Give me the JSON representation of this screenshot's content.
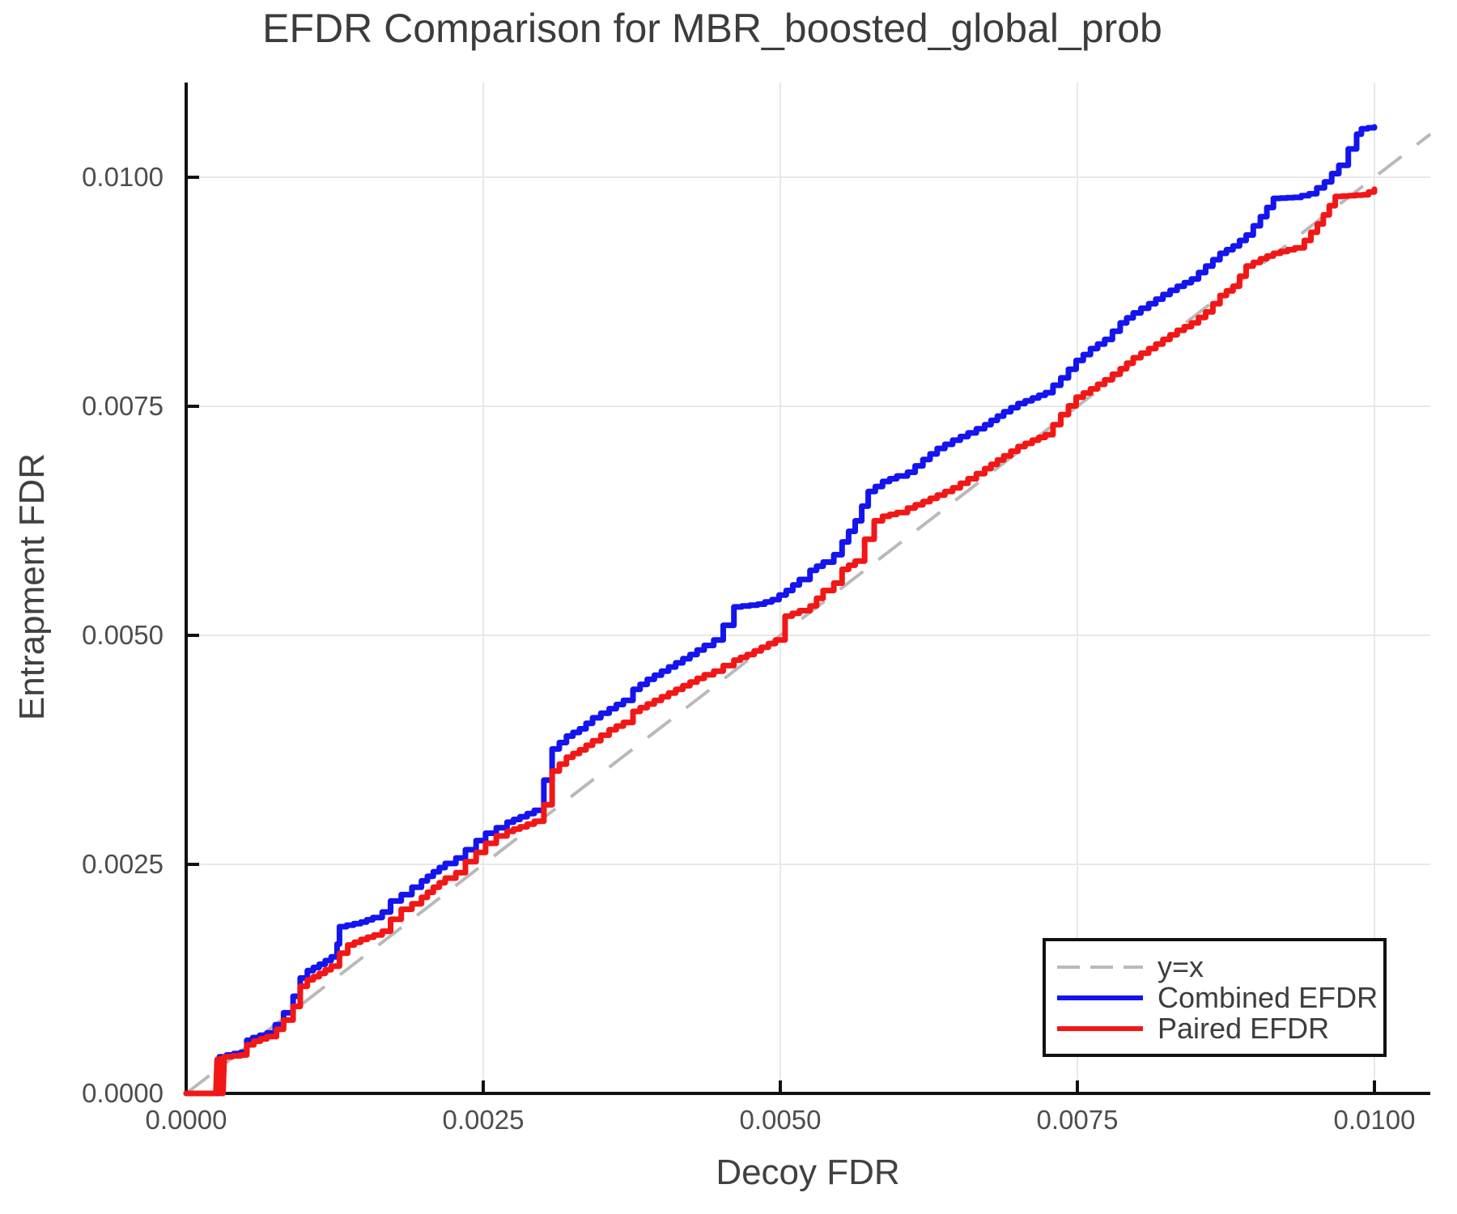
{
  "chart_data": {
    "type": "line",
    "title": "EFDR Comparison for MBR_boosted_global_prob",
    "xlabel": "Decoy FDR",
    "ylabel": "Entrapment FDR",
    "xlim": [
      0,
      0.01047
    ],
    "ylim": [
      0,
      0.011034
    ],
    "grid": true,
    "colors": {
      "grid": "#e8e8e8",
      "axis": "#111111",
      "tick_labels": "#4d4d4d",
      "title": "#3c3c3c",
      "identity": "#b9b9b9",
      "combined": "#1414ef",
      "paired": "#f21717"
    },
    "x_ticks": {
      "values": [
        0,
        0.0025,
        0.005,
        0.0075,
        0.01
      ],
      "labels": [
        "0.0000",
        "0.0025",
        "0.0050",
        "0.0075",
        "0.0100"
      ]
    },
    "y_ticks": {
      "values": [
        0,
        0.0025,
        0.005,
        0.0075,
        0.01
      ],
      "labels": [
        "0.0000",
        "0.0025",
        "0.0050",
        "0.0075",
        "0.0100"
      ]
    },
    "legend": {
      "position": "bottom-right",
      "entries": [
        {
          "label": "y=x",
          "series": "identity"
        },
        {
          "label": "Combined EFDR",
          "series": "combined"
        },
        {
          "label": "Paired EFDR",
          "series": "paired"
        }
      ]
    },
    "series": [
      {
        "id": "identity",
        "name": "y=x",
        "style": "dashed",
        "color": "#b9b9b9",
        "width": 4,
        "points": [
          [
            0,
            0
          ],
          [
            0.01047,
            0.01047
          ]
        ]
      },
      {
        "id": "combined",
        "name": "Combined EFDR",
        "style": "step",
        "color": "#1414ef",
        "width": 7,
        "points": [
          [
            0,
            0
          ],
          [
            0.00027,
            0
          ],
          [
            0.00028,
            0.0004
          ],
          [
            0.00034,
            0.00042
          ],
          [
            0.00046,
            0.00045
          ],
          [
            0.00051,
            0.00058
          ],
          [
            0.00056,
            0.00061
          ],
          [
            0.00068,
            0.00066
          ],
          [
            0.00075,
            0.00075
          ],
          [
            0.00082,
            0.00088
          ],
          [
            0.0009,
            0.00106
          ],
          [
            0.00096,
            0.00126
          ],
          [
            0.00102,
            0.00134
          ],
          [
            0.00112,
            0.00141
          ],
          [
            0.00122,
            0.00149
          ],
          [
            0.00127,
            0.00163
          ],
          [
            0.00129,
            0.00182
          ],
          [
            0.00147,
            0.00187
          ],
          [
            0.00157,
            0.00192
          ],
          [
            0.00165,
            0.00198
          ],
          [
            0.00172,
            0.0021
          ],
          [
            0.00181,
            0.00217
          ],
          [
            0.0019,
            0.00225
          ],
          [
            0.00198,
            0.00232
          ],
          [
            0.00208,
            0.00242
          ],
          [
            0.00218,
            0.00251
          ],
          [
            0.00227,
            0.00257
          ],
          [
            0.00235,
            0.00266
          ],
          [
            0.00244,
            0.00276
          ],
          [
            0.00252,
            0.00284
          ],
          [
            0.00261,
            0.0029
          ],
          [
            0.0027,
            0.00296
          ],
          [
            0.00281,
            0.00302
          ],
          [
            0.00293,
            0.00309
          ],
          [
            0.00301,
            0.00342
          ],
          [
            0.00308,
            0.00376
          ],
          [
            0.0032,
            0.0039
          ],
          [
            0.00331,
            0.00398
          ],
          [
            0.00342,
            0.0041
          ],
          [
            0.00356,
            0.0042
          ],
          [
            0.00368,
            0.00429
          ],
          [
            0.00376,
            0.00441
          ],
          [
            0.00388,
            0.00452
          ],
          [
            0.004,
            0.00461
          ],
          [
            0.00412,
            0.0047
          ],
          [
            0.00424,
            0.00479
          ],
          [
            0.00436,
            0.00489
          ],
          [
            0.00444,
            0.00495
          ],
          [
            0.00452,
            0.00511
          ],
          [
            0.00461,
            0.00531
          ],
          [
            0.00481,
            0.00534
          ],
          [
            0.00493,
            0.00539
          ],
          [
            0.00505,
            0.00549
          ],
          [
            0.00516,
            0.00561
          ],
          [
            0.00525,
            0.00571
          ],
          [
            0.00536,
            0.0058
          ],
          [
            0.00545,
            0.00588
          ],
          [
            0.00552,
            0.00602
          ],
          [
            0.00563,
            0.00625
          ],
          [
            0.00574,
            0.00657
          ],
          [
            0.00586,
            0.00668
          ],
          [
            0.00598,
            0.00674
          ],
          [
            0.00607,
            0.00678
          ],
          [
            0.0062,
            0.00692
          ],
          [
            0.00632,
            0.00704
          ],
          [
            0.00645,
            0.00713
          ],
          [
            0.00658,
            0.00721
          ],
          [
            0.00672,
            0.0073
          ],
          [
            0.00688,
            0.00744
          ],
          [
            0.007,
            0.00753
          ],
          [
            0.00712,
            0.00759
          ],
          [
            0.00723,
            0.00765
          ],
          [
            0.00736,
            0.00781
          ],
          [
            0.00749,
            0.008
          ],
          [
            0.00761,
            0.00813
          ],
          [
            0.00773,
            0.00823
          ],
          [
            0.00786,
            0.00841
          ],
          [
            0.00797,
            0.00852
          ],
          [
            0.0081,
            0.00862
          ],
          [
            0.00822,
            0.00872
          ],
          [
            0.00834,
            0.00881
          ],
          [
            0.00846,
            0.00889
          ],
          [
            0.00858,
            0.00903
          ],
          [
            0.0087,
            0.00917
          ],
          [
            0.00881,
            0.00925
          ],
          [
            0.00892,
            0.00937
          ],
          [
            0.00904,
            0.00957
          ],
          [
            0.00915,
            0.00977
          ],
          [
            0.00932,
            0.00978
          ],
          [
            0.00945,
            0.00982
          ],
          [
            0.00958,
            0.00995
          ],
          [
            0.0097,
            0.01013
          ],
          [
            0.00978,
            0.01031
          ],
          [
            0.00985,
            0.01047
          ],
          [
            0.00989,
            0.01053
          ],
          [
            0.01,
            0.01055
          ]
        ]
      },
      {
        "id": "paired",
        "name": "Paired EFDR",
        "style": "step",
        "color": "#f21717",
        "width": 7,
        "points": [
          [
            0,
            0
          ],
          [
            0.00025,
            0
          ],
          [
            0.00026,
            0.00037
          ],
          [
            0.000285,
            0.00038
          ],
          [
            0.00029,
            0
          ],
          [
            0.00031,
            0
          ],
          [
            0.00032,
            0.0004
          ],
          [
            0.00046,
            0.00042
          ],
          [
            0.00051,
            0.00053
          ],
          [
            0.00057,
            0.00057
          ],
          [
            0.00068,
            0.00062
          ],
          [
            0.00076,
            0.0007
          ],
          [
            0.00082,
            0.0008
          ],
          [
            0.0009,
            0.00095
          ],
          [
            0.00096,
            0.00117
          ],
          [
            0.00102,
            0.00124
          ],
          [
            0.00112,
            0.00131
          ],
          [
            0.00122,
            0.00139
          ],
          [
            0.00129,
            0.00153
          ],
          [
            0.00136,
            0.00162
          ],
          [
            0.00147,
            0.00168
          ],
          [
            0.00158,
            0.00173
          ],
          [
            0.00165,
            0.00177
          ],
          [
            0.00172,
            0.0019
          ],
          [
            0.00181,
            0.00201
          ],
          [
            0.0019,
            0.00207
          ],
          [
            0.00198,
            0.00214
          ],
          [
            0.00208,
            0.00225
          ],
          [
            0.00218,
            0.00235
          ],
          [
            0.00227,
            0.00241
          ],
          [
            0.00235,
            0.00253
          ],
          [
            0.00244,
            0.00263
          ],
          [
            0.00252,
            0.00273
          ],
          [
            0.00261,
            0.00281
          ],
          [
            0.0027,
            0.00286
          ],
          [
            0.00281,
            0.00291
          ],
          [
            0.00293,
            0.00297
          ],
          [
            0.00301,
            0.00315
          ],
          [
            0.00308,
            0.00352
          ],
          [
            0.0032,
            0.00367
          ],
          [
            0.00331,
            0.00375
          ],
          [
            0.00342,
            0.00385
          ],
          [
            0.00356,
            0.00397
          ],
          [
            0.00368,
            0.00405
          ],
          [
            0.00376,
            0.00417
          ],
          [
            0.00388,
            0.00425
          ],
          [
            0.004,
            0.00433
          ],
          [
            0.00412,
            0.00441
          ],
          [
            0.00424,
            0.00449
          ],
          [
            0.00436,
            0.00457
          ],
          [
            0.00444,
            0.00461
          ],
          [
            0.00452,
            0.00467
          ],
          [
            0.00461,
            0.00473
          ],
          [
            0.00472,
            0.00479
          ],
          [
            0.00484,
            0.00487
          ],
          [
            0.00496,
            0.00495
          ],
          [
            0.00504,
            0.00521
          ],
          [
            0.00516,
            0.00527
          ],
          [
            0.00525,
            0.00532
          ],
          [
            0.00536,
            0.00549
          ],
          [
            0.00545,
            0.00557
          ],
          [
            0.00552,
            0.00572
          ],
          [
            0.00563,
            0.00581
          ],
          [
            0.00571,
            0.00605
          ],
          [
            0.00579,
            0.00625
          ],
          [
            0.00586,
            0.0063
          ],
          [
            0.00598,
            0.00634
          ],
          [
            0.00607,
            0.00639
          ],
          [
            0.0062,
            0.00646
          ],
          [
            0.00632,
            0.00653
          ],
          [
            0.00645,
            0.00661
          ],
          [
            0.00658,
            0.00671
          ],
          [
            0.00672,
            0.00682
          ],
          [
            0.00688,
            0.00696
          ],
          [
            0.007,
            0.00706
          ],
          [
            0.00712,
            0.00713
          ],
          [
            0.00723,
            0.00719
          ],
          [
            0.00736,
            0.00741
          ],
          [
            0.00749,
            0.0076
          ],
          [
            0.00761,
            0.00769
          ],
          [
            0.00773,
            0.00779
          ],
          [
            0.00786,
            0.00791
          ],
          [
            0.00797,
            0.00803
          ],
          [
            0.0081,
            0.00813
          ],
          [
            0.00822,
            0.00823
          ],
          [
            0.00834,
            0.00833
          ],
          [
            0.00846,
            0.00841
          ],
          [
            0.00858,
            0.00853
          ],
          [
            0.0087,
            0.00871
          ],
          [
            0.00881,
            0.00881
          ],
          [
            0.00892,
            0.00903
          ],
          [
            0.00904,
            0.00911
          ],
          [
            0.00915,
            0.00917
          ],
          [
            0.00933,
            0.00923
          ],
          [
            0.00941,
            0.00931
          ],
          [
            0.00952,
            0.00949
          ],
          [
            0.00962,
            0.00969
          ],
          [
            0.00967,
            0.00979
          ],
          [
            0.0099,
            0.00981
          ],
          [
            0.01,
            0.00987
          ]
        ]
      }
    ]
  }
}
